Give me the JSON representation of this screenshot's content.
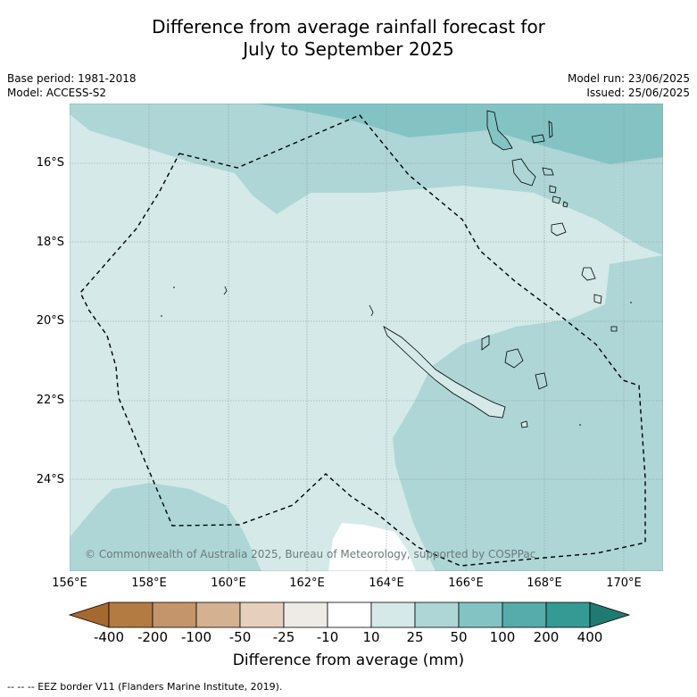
{
  "header": {
    "title_line1": "Difference from average rainfall forecast for",
    "title_line2": "July to September 2025",
    "base_period": "Base period: 1981-2018",
    "model": "Model: ACCESS-S2",
    "model_run": "Model run: 23/06/2025",
    "issued": "Issued: 25/06/2025"
  },
  "map": {
    "lat_labels": [
      "16°S",
      "18°S",
      "20°S",
      "22°S",
      "24°S"
    ],
    "lon_labels": [
      "156°E",
      "158°E",
      "160°E",
      "162°E",
      "164°E",
      "166°E",
      "168°E",
      "170°E"
    ],
    "copyright": "© Commonwealth of Australia 2025, Bureau of Meteorology, supported by COSPPac",
    "colors": {
      "band_10_25": "#d4e9e8",
      "band_25_50": "#aed6d6",
      "band_50_100": "#84c3c3",
      "band_m10_10": "#ffffff",
      "grid": "#8a9a9a"
    }
  },
  "colorbar": {
    "labels": [
      "-400",
      "-200",
      "-100",
      "-50",
      "-25",
      "-10",
      "10",
      "25",
      "50",
      "100",
      "200",
      "400"
    ],
    "colors": [
      "#a5692f",
      "#b37a42",
      "#c4956a",
      "#d4b191",
      "#e6cfbc",
      "#eeebe7",
      "#ffffff",
      "#d4e9e8",
      "#aed6d6",
      "#84c3c3",
      "#56acab",
      "#349a93",
      "#1f7a72"
    ],
    "title": "Difference from average (mm)"
  },
  "footer": {
    "legend_text": "--  --  -- EEZ border V11 (Flanders Marine Institute, 2019)."
  }
}
